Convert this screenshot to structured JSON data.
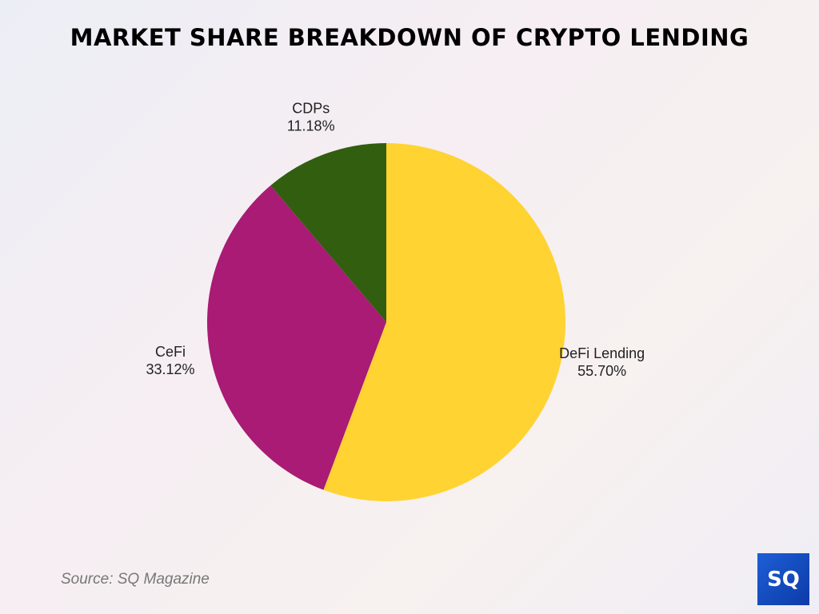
{
  "chart_data": {
    "type": "pie",
    "title": "MARKET SHARE BREAKDOWN OF CRYPTO LENDING",
    "categories": [
      "DeFi Lending",
      "CeFi",
      "CDPs"
    ],
    "values": [
      55.7,
      33.12,
      11.18
    ],
    "labels": [
      "55.70%",
      "33.12%",
      "11.18%"
    ],
    "colors": [
      "#ffd331",
      "#a91b74",
      "#325e10"
    ],
    "start": "top, clockwise"
  },
  "source": "Source: SQ Magazine",
  "logo": "SQ"
}
